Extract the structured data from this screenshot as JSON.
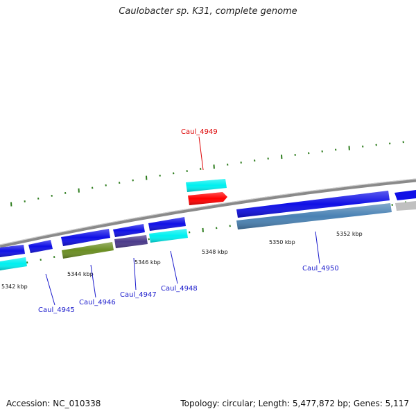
{
  "title": "Caulobacter sp. K31, complete genome",
  "footer": {
    "accession": "Accession: NC_010338",
    "summary": "Topology: circular; Length: 5,477,872 bp; Genes: 5,117"
  },
  "colors": {
    "backbone": "#8a8a8a",
    "tick": "#2e7d1e",
    "label_normal": "#1a1acc",
    "label_highlight": "#dd0000",
    "gene_blue": "#1010e6",
    "gene_cyan": "#00f0f0",
    "gene_olive": "#6b8e23",
    "gene_purple": "#4b3a8a",
    "gene_steel": "#4a82b4",
    "gene_red": "#ff0000",
    "gene_gray": "#c0c0c0"
  },
  "kbp_labels": [
    "5342 kbp",
    "5344 kbp",
    "5346 kbp",
    "5348 kbp",
    "5350 kbp",
    "5352 kbp"
  ],
  "gene_labels": [
    {
      "name": "Caul_4945",
      "highlight": false
    },
    {
      "name": "Caul_4946",
      "highlight": false
    },
    {
      "name": "Caul_4947",
      "highlight": false
    },
    {
      "name": "Caul_4948",
      "highlight": false
    },
    {
      "name": "Caul_4949",
      "highlight": true
    },
    {
      "name": "Caul_4950",
      "highlight": false
    }
  ]
}
